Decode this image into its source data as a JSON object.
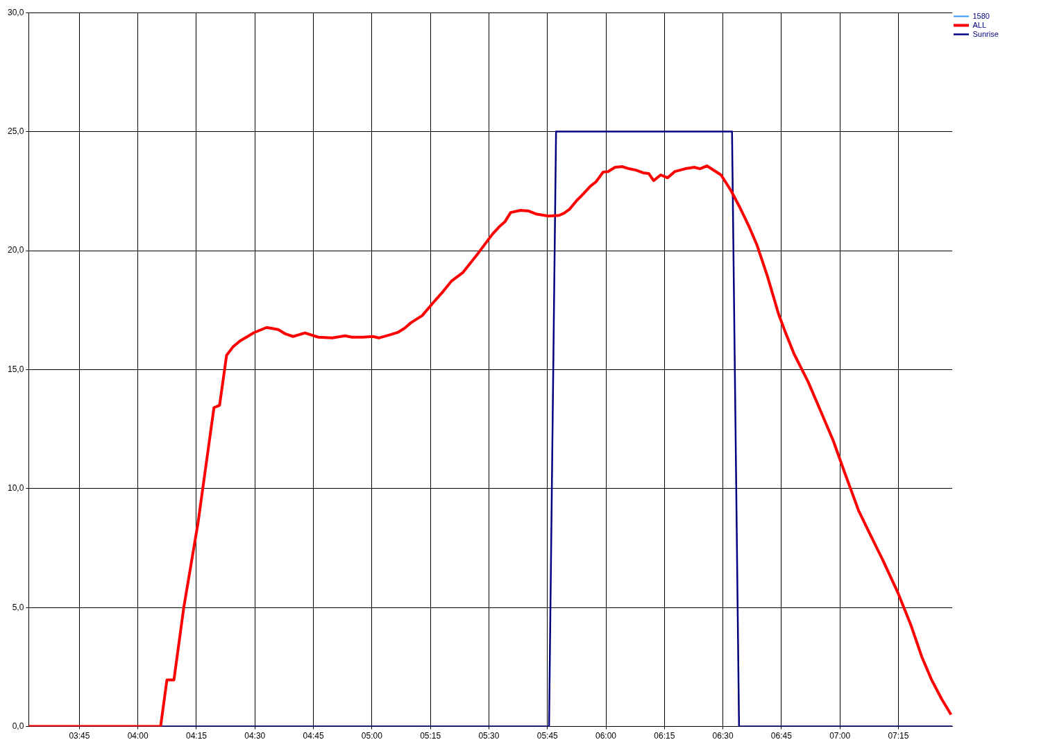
{
  "chart_data": {
    "type": "line",
    "xlim": [
      3.5333,
      7.48
    ],
    "xticks": [
      {
        "value": 3.75,
        "label": "03:45"
      },
      {
        "value": 4,
        "label": "04:00"
      },
      {
        "value": 4.25,
        "label": "04:15"
      },
      {
        "value": 4.5,
        "label": "04:30"
      },
      {
        "value": 4.75,
        "label": "04:45"
      },
      {
        "value": 5,
        "label": "05:00"
      },
      {
        "value": 5.25,
        "label": "05:15"
      },
      {
        "value": 5.5,
        "label": "05:30"
      },
      {
        "value": 5.75,
        "label": "05:45"
      },
      {
        "value": 6,
        "label": "06:00"
      },
      {
        "value": 6.25,
        "label": "06:15"
      },
      {
        "value": 6.5,
        "label": "06:30"
      },
      {
        "value": 6.75,
        "label": "06:45"
      },
      {
        "value": 7,
        "label": "07:00"
      },
      {
        "value": 7.25,
        "label": "07:15"
      }
    ],
    "ylim": [
      0,
      30
    ],
    "yticks": [
      {
        "value": 0,
        "label": "0,0"
      },
      {
        "value": 5,
        "label": "5,0"
      },
      {
        "value": 10,
        "label": "10,0"
      },
      {
        "value": 15,
        "label": "15,0"
      },
      {
        "value": 20,
        "label": "20,0"
      },
      {
        "value": 25,
        "label": "25,0"
      },
      {
        "value": 30,
        "label": "30,0"
      }
    ],
    "grid": true,
    "legend": "top right",
    "marker": "none",
    "series": [
      {
        "name": "1580",
        "color": "#3399ff"
      },
      {
        "name": "ALL",
        "color": "#ff0000",
        "x": [
          3.5333,
          4.097,
          4.124,
          4.154,
          4.196,
          4.256,
          4.325,
          4.349,
          4.379,
          4.406,
          4.436,
          4.496,
          4.55,
          4.6,
          4.63,
          4.663,
          4.714,
          4.771,
          4.831,
          4.885,
          4.915,
          4.96,
          5.005,
          5.029,
          5.074,
          5.11,
          5.14,
          5.167,
          5.215,
          5.26,
          5.305,
          5.341,
          5.389,
          5.455,
          5.515,
          5.545,
          5.569,
          5.593,
          5.635,
          5.671,
          5.701,
          5.755,
          5.8,
          5.821,
          5.845,
          5.875,
          5.904,
          5.934,
          5.958,
          5.988,
          6.009,
          6.039,
          6.069,
          6.099,
          6.129,
          6.159,
          6.183,
          6.204,
          6.234,
          6.264,
          6.294,
          6.339,
          6.378,
          6.402,
          6.432,
          6.492,
          6.534,
          6.57,
          6.609,
          6.645,
          6.69,
          6.738,
          6.768,
          6.804,
          6.864,
          6.915,
          6.972,
          7.02,
          7.08,
          7.116,
          7.182,
          7.248,
          7.302,
          7.35,
          7.392,
          7.434,
          7.475
        ],
        "values": [
          0,
          0,
          1.96,
          1.96,
          5.0,
          8.5,
          13.4,
          13.5,
          15.6,
          15.95,
          16.2,
          16.55,
          16.77,
          16.68,
          16.5,
          16.39,
          16.54,
          16.36,
          16.33,
          16.42,
          16.36,
          16.36,
          16.39,
          16.33,
          16.45,
          16.56,
          16.74,
          16.97,
          17.27,
          17.79,
          18.29,
          18.73,
          19.08,
          19.9,
          20.69,
          21.01,
          21.22,
          21.6,
          21.69,
          21.66,
          21.54,
          21.45,
          21.48,
          21.57,
          21.74,
          22.1,
          22.39,
          22.71,
          22.89,
          23.3,
          23.32,
          23.5,
          23.53,
          23.44,
          23.38,
          23.27,
          23.24,
          22.94,
          23.18,
          23.06,
          23.32,
          23.44,
          23.5,
          23.44,
          23.56,
          23.18,
          22.53,
          21.86,
          21.07,
          20.25,
          18.93,
          17.33,
          16.54,
          15.66,
          14.49,
          13.32,
          12.0,
          10.68,
          9.07,
          8.34,
          7.02,
          5.62,
          4.3,
          2.93,
          1.96,
          1.17,
          0.5
        ]
      },
      {
        "name": "Sunrise",
        "color": "#000080",
        "x": [
          3.5333,
          5.757,
          5.787,
          6.539,
          6.569,
          7.48
        ],
        "values": [
          0,
          0,
          25,
          25,
          0,
          0
        ]
      }
    ]
  }
}
